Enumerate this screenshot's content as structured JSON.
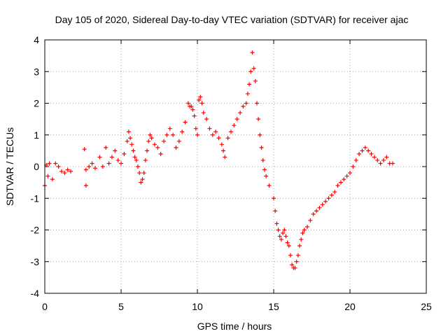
{
  "chart_data": {
    "type": "scatter",
    "title": "Day 105 of 2020, Sidereal Day-to-day VTEC variation (SDTVAR) for receiver ajac",
    "xlabel": "GPS time / hours",
    "ylabel": "SDTVAR / TECUs",
    "xlim": [
      0,
      25
    ],
    "ylim": [
      -4,
      4
    ],
    "xticks": [
      "0",
      "5",
      "10",
      "15",
      "20",
      "25"
    ],
    "yticks": [
      "-4",
      "-3",
      "-2",
      "-1",
      "0",
      "1",
      "2",
      "3",
      "4"
    ],
    "grid": true,
    "marker": "+",
    "color": "#ff0000",
    "series": [
      {
        "name": "SDTVAR",
        "x": [
          0.0,
          0.1,
          0.2,
          0.3,
          0.5,
          0.7,
          0.9,
          1.1,
          1.3,
          1.5,
          1.7,
          2.6,
          2.7,
          2.7,
          2.9,
          3.1,
          3.3,
          3.6,
          3.8,
          4.0,
          4.2,
          4.4,
          4.6,
          4.8,
          5.0,
          5.2,
          5.4,
          5.5,
          5.6,
          5.7,
          5.8,
          5.9,
          6.0,
          6.1,
          6.2,
          6.3,
          6.4,
          6.5,
          6.6,
          6.7,
          6.8,
          6.9,
          7.0,
          7.2,
          7.4,
          7.6,
          7.8,
          8.0,
          8.2,
          8.4,
          8.6,
          8.8,
          9.0,
          9.2,
          9.4,
          9.5,
          9.6,
          9.7,
          9.8,
          9.9,
          10.0,
          10.1,
          10.2,
          10.3,
          10.4,
          10.6,
          10.8,
          11.0,
          11.2,
          11.4,
          11.6,
          11.7,
          11.8,
          12.0,
          12.2,
          12.4,
          12.6,
          12.8,
          13.0,
          13.2,
          13.3,
          13.4,
          13.5,
          13.6,
          13.7,
          13.8,
          13.9,
          14.0,
          14.1,
          14.2,
          14.3,
          14.4,
          14.5,
          14.7,
          15.0,
          15.1,
          15.2,
          15.3,
          15.4,
          15.5,
          15.6,
          15.7,
          15.8,
          15.9,
          16.0,
          16.1,
          16.2,
          16.3,
          16.4,
          16.5,
          16.6,
          16.7,
          16.8,
          16.9,
          17.0,
          17.2,
          17.4,
          17.6,
          17.8,
          18.0,
          18.2,
          18.4,
          18.6,
          18.8,
          19.0,
          19.2,
          19.4,
          19.6,
          19.8,
          20.0,
          20.2,
          20.4,
          20.6,
          20.8,
          21.0,
          21.2,
          21.4,
          21.6,
          21.8,
          22.0,
          22.2,
          22.4,
          22.6,
          22.8
        ],
        "y": [
          -0.6,
          0.05,
          -0.3,
          0.1,
          -0.4,
          0.1,
          0.0,
          -0.15,
          -0.2,
          -0.1,
          -0.15,
          0.55,
          -0.1,
          -0.6,
          0.0,
          0.1,
          -0.05,
          0.3,
          0.0,
          0.6,
          0.1,
          0.3,
          0.5,
          0.2,
          0.1,
          0.4,
          0.8,
          1.1,
          0.9,
          0.7,
          0.5,
          0.3,
          0.2,
          0.0,
          -0.2,
          -0.5,
          -0.4,
          -0.2,
          0.2,
          0.5,
          0.8,
          1.0,
          0.9,
          0.7,
          0.6,
          0.4,
          0.8,
          1.0,
          1.2,
          1.0,
          0.6,
          0.8,
          1.1,
          1.4,
          2.0,
          1.9,
          1.9,
          1.8,
          1.6,
          1.2,
          1.0,
          2.1,
          2.2,
          2.0,
          1.7,
          1.5,
          1.2,
          1.0,
          1.1,
          0.9,
          0.7,
          0.5,
          0.3,
          0.9,
          1.1,
          1.3,
          1.5,
          1.7,
          1.9,
          2.0,
          2.3,
          2.6,
          3.0,
          3.6,
          3.1,
          2.7,
          2.0,
          1.5,
          1.0,
          0.6,
          0.2,
          -0.1,
          -0.3,
          -0.6,
          -1.0,
          -1.4,
          -1.8,
          -2.0,
          -2.2,
          -2.3,
          -2.1,
          -2.0,
          -2.2,
          -2.4,
          -2.5,
          -2.8,
          -3.1,
          -3.2,
          -3.2,
          -3.0,
          -2.8,
          -2.5,
          -2.3,
          -2.1,
          -2.0,
          -1.9,
          -1.7,
          -1.5,
          -1.4,
          -1.3,
          -1.2,
          -1.1,
          -1.0,
          -0.9,
          -0.8,
          -0.6,
          -0.5,
          -0.4,
          -0.3,
          -0.2,
          0.0,
          0.2,
          0.4,
          0.5,
          0.6,
          0.5,
          0.4,
          0.3,
          0.2,
          0.1,
          0.2,
          0.3,
          0.1,
          0.1
        ]
      }
    ]
  }
}
